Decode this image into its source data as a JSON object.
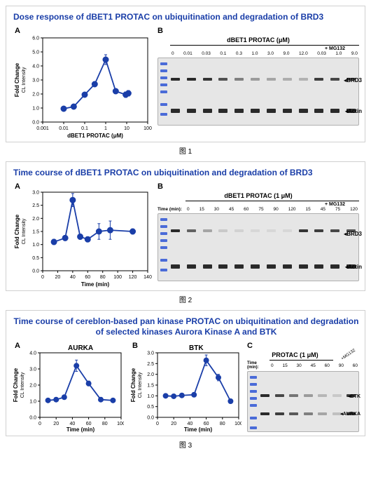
{
  "figure1": {
    "title": "Dose response of dBET1 PROTAC on ubiquitination and degradation of BRD3",
    "caption": "图 1",
    "chartA": {
      "type": "line-scatter",
      "panel_label": "A",
      "x_label": "dBET1 PROTAC (μM)",
      "y_label_main": "Fold Change",
      "y_label_sub": "CL Intensity",
      "x_scale": "log",
      "x_ticks": [
        0.001,
        0.01,
        0.1,
        1,
        10,
        100
      ],
      "x_tick_labels": [
        "0.001",
        "0.01",
        "0.1",
        "1",
        "10",
        "100"
      ],
      "y_lim": [
        0.0,
        6.0
      ],
      "y_ticks": [
        0.0,
        1.0,
        2.0,
        3.0,
        4.0,
        5.0,
        6.0
      ],
      "line_color": "#1a3ea8",
      "marker_fill": "#1a3ea8",
      "marker_stroke": "#1a3ea8",
      "marker_size": 4,
      "background": "#ffffff",
      "points": [
        {
          "x": 0.01,
          "y": 0.95,
          "err": 0.12
        },
        {
          "x": 0.03,
          "y": 1.1,
          "err": 0.12
        },
        {
          "x": 0.1,
          "y": 1.95,
          "err": 0.15
        },
        {
          "x": 0.3,
          "y": 2.7,
          "err": 0.18
        },
        {
          "x": 1.0,
          "y": 4.45,
          "err": 0.35
        },
        {
          "x": 3.0,
          "y": 2.2,
          "err": 0.18
        },
        {
          "x": 9.0,
          "y": 1.95,
          "err": 0.2
        },
        {
          "x": 12.0,
          "y": 2.05,
          "err": 0.2
        }
      ]
    },
    "panelB": {
      "panel_label": "B",
      "title": "dBET1 PROTAC (μM)",
      "mg132": "+ MG132",
      "lane_labels": [
        "0",
        "0.01",
        "0.03",
        "0.1",
        "0.3",
        "1.0",
        "3.0",
        "9.0",
        "12.0",
        "0.03",
        "1.0",
        "9.0"
      ],
      "target1": "BRD3",
      "target2": "Actin",
      "bg": "#e6e6e6",
      "ladder_color": "#4a6bd8",
      "band_color": "#2a2a2a",
      "brd3_intensity": [
        1.0,
        1.0,
        0.95,
        0.8,
        0.55,
        0.4,
        0.35,
        0.3,
        0.28,
        0.9,
        0.85,
        0.8
      ],
      "actin_intensity": [
        1.0,
        1.0,
        1.0,
        1.0,
        1.0,
        1.0,
        1.0,
        1.0,
        1.0,
        1.0,
        1.0,
        1.0
      ]
    }
  },
  "figure2": {
    "title": "Time course of dBET1 PROTAC on ubiquitination and degradation of BRD3",
    "caption": "图 2",
    "chartA": {
      "type": "line-scatter",
      "panel_label": "A",
      "x_label": "Time (min)",
      "y_label_main": "Fold Change",
      "y_label_sub": "CL Intensity",
      "x_scale": "linear",
      "x_lim": [
        0,
        140
      ],
      "x_ticks": [
        0,
        20,
        40,
        60,
        80,
        100,
        120,
        140
      ],
      "y_lim": [
        0.0,
        3.0
      ],
      "y_ticks": [
        0.0,
        0.5,
        1.0,
        1.5,
        2.0,
        2.5,
        3.0
      ],
      "line_color": "#1a3ea8",
      "marker_fill": "#1a3ea8",
      "marker_stroke": "#1a3ea8",
      "marker_size": 4,
      "background": "#ffffff",
      "points": [
        {
          "x": 15,
          "y": 1.1,
          "err": 0.1
        },
        {
          "x": 30,
          "y": 1.25,
          "err": 0.1
        },
        {
          "x": 40,
          "y": 2.7,
          "err": 0.25
        },
        {
          "x": 50,
          "y": 1.3,
          "err": 0.1
        },
        {
          "x": 60,
          "y": 1.2,
          "err": 0.1
        },
        {
          "x": 75,
          "y": 1.5,
          "err": 0.3
        },
        {
          "x": 90,
          "y": 1.55,
          "err": 0.35
        },
        {
          "x": 120,
          "y": 1.5,
          "err": 0.1
        }
      ]
    },
    "panelB": {
      "panel_label": "B",
      "title": "dBET1 PROTAC (1 μM)",
      "mg132": "+ MG132",
      "time_prefix": "Time (min):",
      "lane_labels": [
        "0",
        "15",
        "30",
        "45",
        "60",
        "75",
        "90",
        "120",
        "15",
        "45",
        "75",
        "120"
      ],
      "target1": "BRD3",
      "target2": "Actin",
      "bg": "#e6e6e6",
      "brd3_intensity": [
        1.0,
        0.7,
        0.35,
        0.15,
        0.1,
        0.08,
        0.05,
        0.05,
        0.95,
        0.9,
        0.85,
        0.8
      ],
      "actin_intensity": [
        1.0,
        1.0,
        1.0,
        1.0,
        1.0,
        1.0,
        1.0,
        1.0,
        1.0,
        1.0,
        1.0,
        1.0
      ]
    }
  },
  "figure3": {
    "title": "Time course of cereblon-based pan kinase PROTAC on ubiquitination and degradation of selected kinases Aurora Kinase A and BTK",
    "caption": "图 3",
    "chartA": {
      "type": "line-scatter",
      "panel_label": "A",
      "sub_title": "AURKA",
      "x_label": "Time (min)",
      "y_label_main": "Fold Change",
      "y_label_sub": "CL Intensity",
      "x_scale": "linear",
      "x_lim": [
        0,
        100
      ],
      "x_ticks": [
        0,
        20,
        40,
        60,
        80,
        100
      ],
      "y_lim": [
        0.0,
        4.0
      ],
      "y_ticks": [
        0.0,
        1.0,
        2.0,
        3.0,
        4.0
      ],
      "line_color": "#1a3ea8",
      "marker_fill": "#1a3ea8",
      "marker_size": 3.5,
      "points": [
        {
          "x": 10,
          "y": 1.05,
          "err": 0.1
        },
        {
          "x": 20,
          "y": 1.1,
          "err": 0.1
        },
        {
          "x": 30,
          "y": 1.25,
          "err": 0.1
        },
        {
          "x": 45,
          "y": 3.2,
          "err": 0.35
        },
        {
          "x": 60,
          "y": 2.1,
          "err": 0.15
        },
        {
          "x": 75,
          "y": 1.1,
          "err": 0.1
        },
        {
          "x": 90,
          "y": 1.05,
          "err": 0.1
        }
      ]
    },
    "chartB": {
      "type": "line-scatter",
      "panel_label": "B",
      "sub_title": "BTK",
      "x_label": "Time (min)",
      "y_label_main": "Fold Change",
      "y_label_sub": "CL Intensity",
      "x_scale": "linear",
      "x_lim": [
        0,
        100
      ],
      "x_ticks": [
        0,
        20,
        40,
        60,
        80,
        100
      ],
      "y_lim": [
        0.0,
        3.0
      ],
      "y_ticks": [
        0.0,
        0.5,
        1.0,
        1.5,
        2.0,
        2.5,
        3.0
      ],
      "line_color": "#1a3ea8",
      "marker_fill": "#1a3ea8",
      "marker_size": 3.5,
      "points": [
        {
          "x": 10,
          "y": 1.0,
          "err": 0.08
        },
        {
          "x": 20,
          "y": 0.98,
          "err": 0.08
        },
        {
          "x": 30,
          "y": 1.02,
          "err": 0.08
        },
        {
          "x": 45,
          "y": 1.05,
          "err": 0.1
        },
        {
          "x": 60,
          "y": 2.65,
          "err": 0.25
        },
        {
          "x": 75,
          "y": 1.85,
          "err": 0.15
        },
        {
          "x": 90,
          "y": 0.75,
          "err": 0.1
        }
      ]
    },
    "panelC": {
      "panel_label": "C",
      "title": "PROTAC (1 μM)",
      "mg132": "+MG132",
      "time_prefix": "Time (min):",
      "lane_labels": [
        "0",
        "15",
        "30",
        "45",
        "60",
        "90",
        "60"
      ],
      "target1": "BTK",
      "target2": "AURKA",
      "bg": "#e6e6e6",
      "btk_intensity": [
        1.0,
        0.85,
        0.6,
        0.4,
        0.25,
        0.15,
        0.9
      ],
      "aurka_intensity": [
        1.0,
        0.9,
        0.75,
        0.55,
        0.35,
        0.2,
        0.9
      ]
    }
  }
}
